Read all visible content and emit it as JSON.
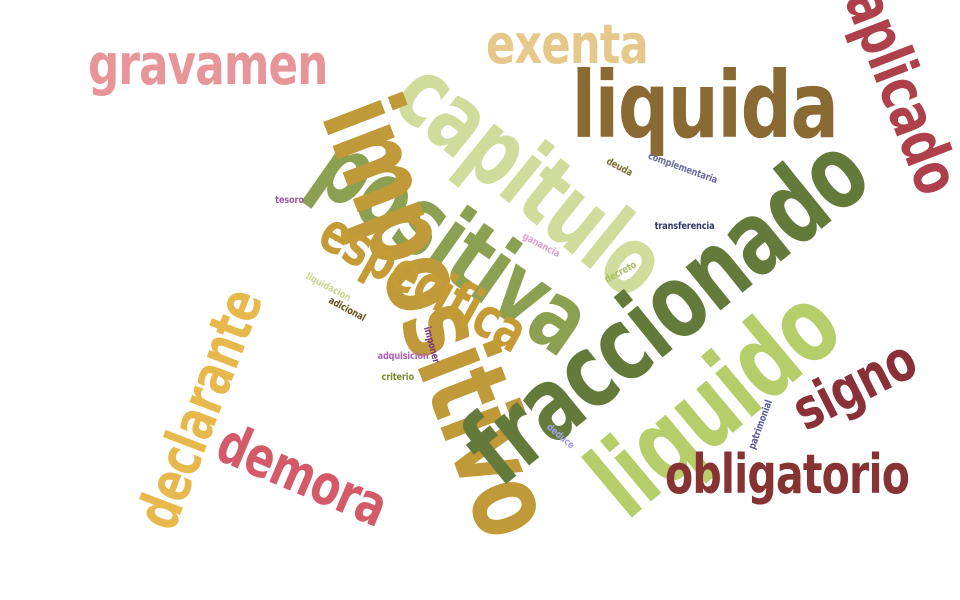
{
  "words": {
    "liquida": {
      "text": "liquida",
      "color": "#8a6a33"
    },
    "capitulo": {
      "text": "capitulo",
      "color": "#cfdc9c"
    },
    "fraccionado": {
      "text": "fraccionado",
      "color": "#647a3a"
    },
    "positiva": {
      "text": "positiva",
      "color": "#8ba050"
    },
    "impositivo": {
      "text": "impositivo",
      "color": "#c09a38"
    },
    "liquido": {
      "text": "liquido",
      "color": "#b5ce6a"
    },
    "especifica": {
      "text": "especifica",
      "color": "#c59b36"
    },
    "gravamen": {
      "text": "gravamen",
      "color": "#e8959a"
    },
    "exenta": {
      "text": "exenta",
      "color": "#e6c88a"
    },
    "aplicado": {
      "text": "aplicado",
      "color": "#ad404a"
    },
    "declarante": {
      "text": "declarante",
      "color": "#e7b84c"
    },
    "demora": {
      "text": "demora",
      "color": "#d45a6a"
    },
    "signo": {
      "text": "signo",
      "color": "#8a3038"
    },
    "obligatorio": {
      "text": "obligatorio",
      "color": "#873233"
    },
    "tesoro": {
      "text": "tesoro",
      "color": "#a05a9a"
    },
    "deuda": {
      "text": "deuda",
      "color": "#7a6a30"
    },
    "complementaria": {
      "text": "complementaria",
      "color": "#6a6aa0"
    },
    "transferencia": {
      "text": "transferencia",
      "color": "#2e3a6a"
    },
    "ganancia": {
      "text": "ganancia",
      "color": "#e0a0d0"
    },
    "decreto": {
      "text": "decreto",
      "color": "#a8c060"
    },
    "liquidacion": {
      "text": "liquidacion",
      "color": "#c8d890"
    },
    "adicional": {
      "text": "adicional",
      "color": "#6a5020"
    },
    "imponer": {
      "text": "imponer",
      "color": "#7a3a7a"
    },
    "adquisicion": {
      "text": "adquisicion",
      "color": "#b060b0"
    },
    "criterio": {
      "text": "criterio",
      "color": "#7a8a30"
    },
    "deduce": {
      "text": "deduce",
      "color": "#a0a0e0"
    },
    "patrimonial": {
      "text": "patrimonial",
      "color": "#5a5aa0"
    }
  }
}
